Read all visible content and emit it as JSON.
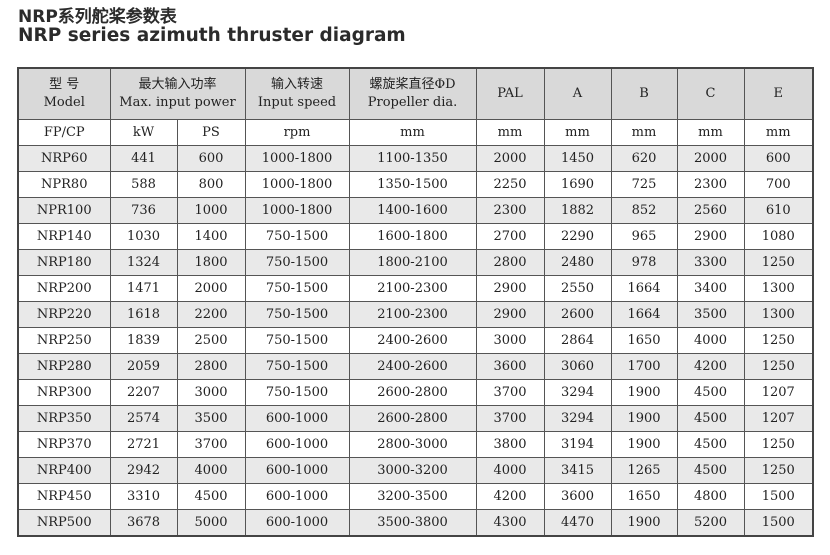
{
  "title_cn": "NRP系列舵桨参数表",
  "title_en": "NRP series azimuth thruster diagram",
  "header": {
    "model": {
      "cn": "型  号",
      "en": "Model"
    },
    "power": {
      "cn": "最大输入功率",
      "en": "Max. input  power"
    },
    "speed": {
      "cn": "输入转速",
      "en": "Input speed"
    },
    "prop": {
      "cn": "螺旋桨直径ΦD",
      "en": "Propeller dia."
    },
    "pal": "PAL",
    "a": "A",
    "b": "B",
    "c": "C",
    "e": "E"
  },
  "units": [
    "FP/CP",
    "kW",
    "PS",
    "rpm",
    "mm",
    "mm",
    "mm",
    "mm",
    "mm",
    "mm"
  ],
  "rows": [
    [
      "NRP60",
      "441",
      "600",
      "1000-1800",
      "1100-1350",
      "2000",
      "1450",
      "620",
      "2000",
      "600"
    ],
    [
      "NPR80",
      "588",
      "800",
      "1000-1800",
      "1350-1500",
      "2250",
      "1690",
      "725",
      "2300",
      "700"
    ],
    [
      "NPR100",
      "736",
      "1000",
      "1000-1800",
      "1400-1600",
      "2300",
      "1882",
      "852",
      "2560",
      "610"
    ],
    [
      "NRP140",
      "1030",
      "1400",
      "750-1500",
      "1600-1800",
      "2700",
      "2290",
      "965",
      "2900",
      "1080"
    ],
    [
      "NRP180",
      "1324",
      "1800",
      "750-1500",
      "1800-2100",
      "2800",
      "2480",
      "978",
      "3300",
      "1250"
    ],
    [
      "NRP200",
      "1471",
      "2000",
      "750-1500",
      "2100-2300",
      "2900",
      "2550",
      "1664",
      "3400",
      "1300"
    ],
    [
      "NRP220",
      "1618",
      "2200",
      "750-1500",
      "2100-2300",
      "2900",
      "2600",
      "1664",
      "3500",
      "1300"
    ],
    [
      "NRP250",
      "1839",
      "2500",
      "750-1500",
      "2400-2600",
      "3000",
      "2864",
      "1650",
      "4000",
      "1250"
    ],
    [
      "NRP280",
      "2059",
      "2800",
      "750-1500",
      "2400-2600",
      "3600",
      "3060",
      "1700",
      "4200",
      "1250"
    ],
    [
      "NRP300",
      "2207",
      "3000",
      "750-1500",
      "2600-2800",
      "3700",
      "3294",
      "1900",
      "4500",
      "1207"
    ],
    [
      "NRP350",
      "2574",
      "3500",
      "600-1000",
      "2600-2800",
      "3700",
      "3294",
      "1900",
      "4500",
      "1207"
    ],
    [
      "NRP370",
      "2721",
      "3700",
      "600-1000",
      "2800-3000",
      "3800",
      "3194",
      "1900",
      "4500",
      "1250"
    ],
    [
      "NRP400",
      "2942",
      "4000",
      "600-1000",
      "3000-3200",
      "4000",
      "3415",
      "1265",
      "4500",
      "1250"
    ],
    [
      "NRP450",
      "3310",
      "4500",
      "600-1000",
      "3200-3500",
      "4200",
      "3600",
      "1650",
      "4800",
      "1500"
    ],
    [
      "NRP500",
      "3678",
      "5000",
      "600-1000",
      "3500-3800",
      "4300",
      "4470",
      "1900",
      "5200",
      "1500"
    ]
  ]
}
